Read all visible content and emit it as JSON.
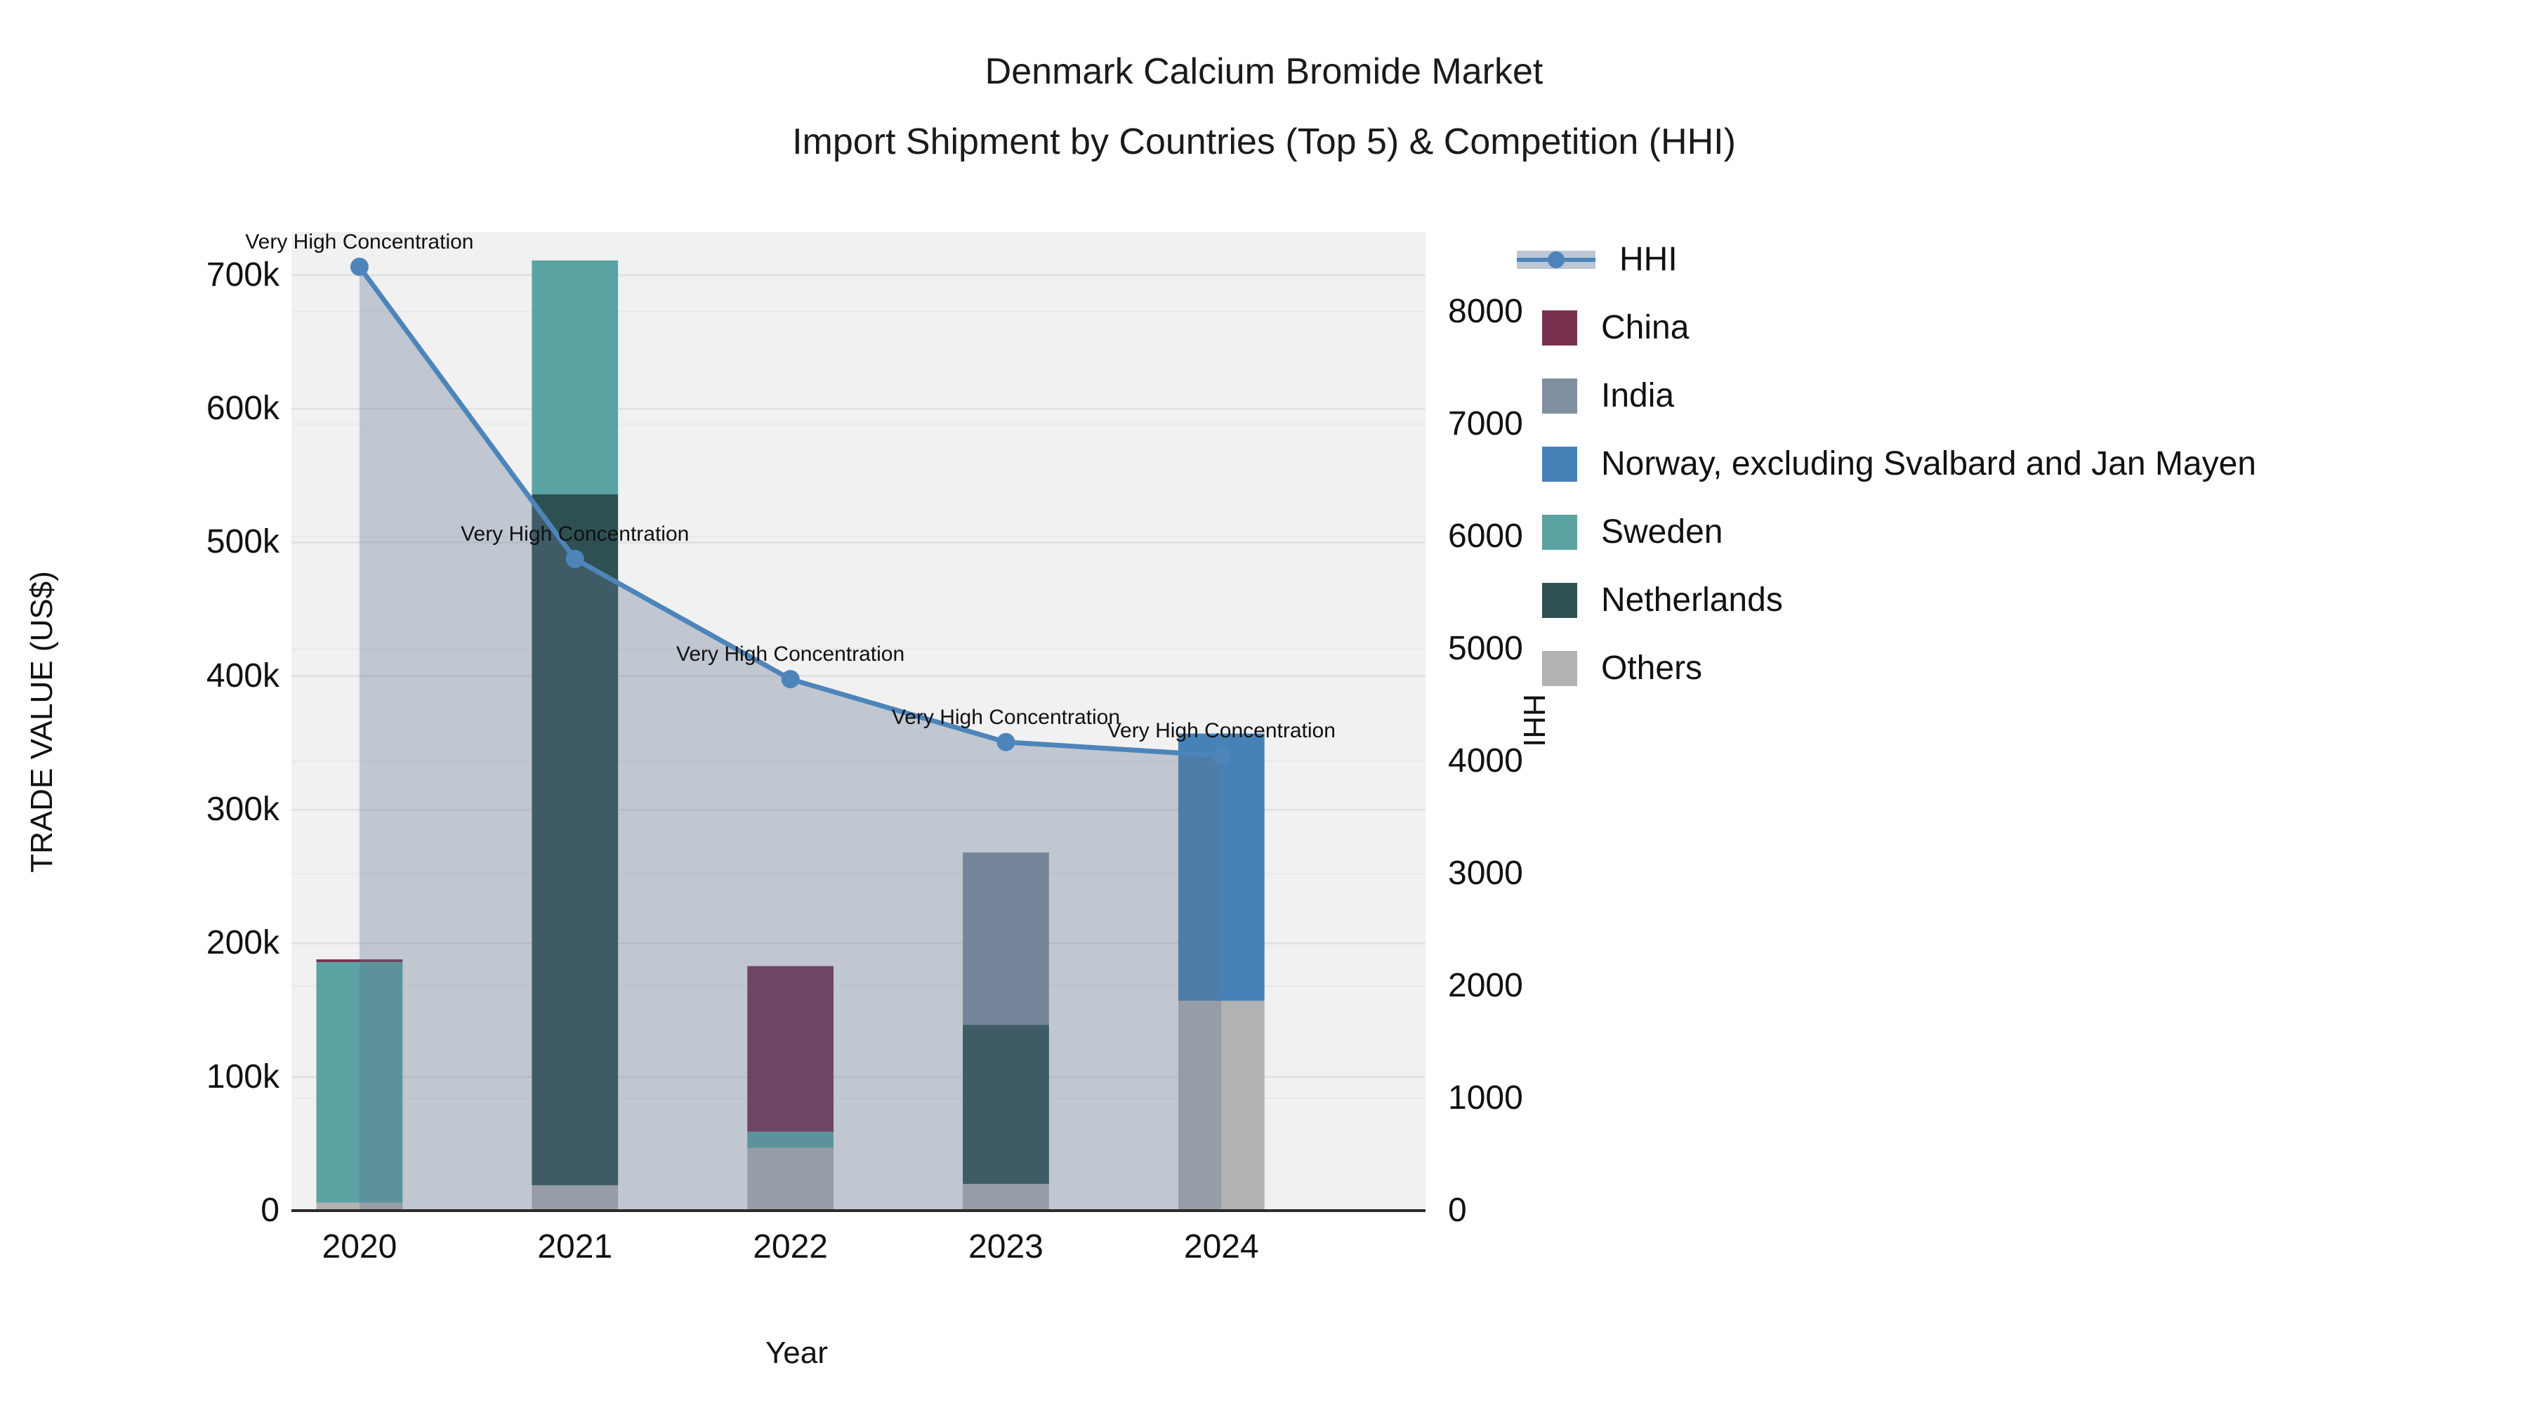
{
  "title": {
    "line1": "Denmark Calcium Bromide Market",
    "line2": "Import Shipment by Countries (Top 5) & Competition (HHI)"
  },
  "axes": {
    "x": {
      "label": "Year",
      "categories": [
        "2020",
        "2021",
        "2022",
        "2023",
        "2024"
      ]
    },
    "y_left": {
      "label": "TRADE VALUE (US$)",
      "ticks": [
        {
          "value": 0,
          "label": "0"
        },
        {
          "value": 100000,
          "label": "100k"
        },
        {
          "value": 200000,
          "label": "200k"
        },
        {
          "value": 300000,
          "label": "300k"
        },
        {
          "value": 400000,
          "label": "400k"
        },
        {
          "value": 500000,
          "label": "500k"
        },
        {
          "value": 600000,
          "label": "600k"
        },
        {
          "value": 700000,
          "label": "700k"
        }
      ],
      "max": 732500
    },
    "y_right": {
      "label": "HHI",
      "ticks": [
        {
          "value": 0,
          "label": "0"
        },
        {
          "value": 1000,
          "label": "1000"
        },
        {
          "value": 2000,
          "label": "2000"
        },
        {
          "value": 3000,
          "label": "3000"
        },
        {
          "value": 4000,
          "label": "4000"
        },
        {
          "value": 5000,
          "label": "5000"
        },
        {
          "value": 6000,
          "label": "6000"
        },
        {
          "value": 7000,
          "label": "7000"
        },
        {
          "value": 8000,
          "label": "8000"
        }
      ],
      "max": 8712
    }
  },
  "chart_data": {
    "type": "bar",
    "subtype": "stacked-bars-with-line-overlay",
    "categories": [
      "2020",
      "2021",
      "2022",
      "2023",
      "2024"
    ],
    "series": [
      {
        "name": "Others",
        "color": "#b2b2b2",
        "values": [
          6000,
          19000,
          47000,
          20000,
          157000
        ]
      },
      {
        "name": "Netherlands",
        "color": "#2f5052",
        "values": [
          0,
          517000,
          0,
          119000,
          0
        ]
      },
      {
        "name": "Sweden",
        "color": "#5ba3a2",
        "values": [
          180000,
          175000,
          12000,
          0,
          0
        ]
      },
      {
        "name": "Norway, excluding Svalbard and Jan Mayen",
        "color": "#4682b8",
        "values": [
          0,
          0,
          0,
          0,
          200000
        ]
      },
      {
        "name": "India",
        "color": "#8090a0",
        "values": [
          0,
          0,
          0,
          129000,
          0
        ]
      },
      {
        "name": "China",
        "color": "#76304e",
        "values": [
          2000,
          0,
          124000,
          0,
          0
        ]
      }
    ],
    "line_series": {
      "name": "HHI",
      "color": "#4d85bb",
      "area_fill": "rgba(93,115,142,0.33)",
      "values": [
        8400,
        5800,
        4730,
        4170,
        4050
      ]
    },
    "annotations": [
      {
        "category": "2020",
        "text": "Very High Concentration"
      },
      {
        "category": "2021",
        "text": "Very High Concentration"
      },
      {
        "category": "2022",
        "text": "Very High Concentration"
      },
      {
        "category": "2023",
        "text": "Very High Concentration"
      },
      {
        "category": "2024",
        "text": "Very High Concentration"
      }
    ],
    "title": "Denmark Calcium Bromide Market — Import Shipment by Countries (Top 5) & Competition (HHI)",
    "xlabel": "Year",
    "ylabel_left": "TRADE VALUE (US$)",
    "ylabel_right": "HHI",
    "ylim_left": [
      0,
      732500
    ],
    "ylim_right": [
      0,
      8712
    ],
    "grid": true,
    "legend_position": "right"
  },
  "legend": {
    "items": [
      {
        "label": "HHI",
        "type": "line",
        "color": "#4d85bb",
        "band_color": "#bcc6d4"
      },
      {
        "label": "China",
        "type": "swatch",
        "color": "#76304e"
      },
      {
        "label": "India",
        "type": "swatch",
        "color": "#8090a0"
      },
      {
        "label": "Norway, excluding Svalbard and Jan Mayen",
        "type": "swatch",
        "color": "#4682b8"
      },
      {
        "label": "Sweden",
        "type": "swatch",
        "color": "#5ba3a2"
      },
      {
        "label": "Netherlands",
        "type": "swatch",
        "color": "#2f5052"
      },
      {
        "label": "Others",
        "type": "swatch",
        "color": "#b2b2b2"
      }
    ]
  },
  "style": {
    "plot_bg": "#f1f1f1",
    "grid_left": "#e2e2e2",
    "grid_right": "#e9e9e9",
    "axis_line": "#2b2b2b"
  }
}
